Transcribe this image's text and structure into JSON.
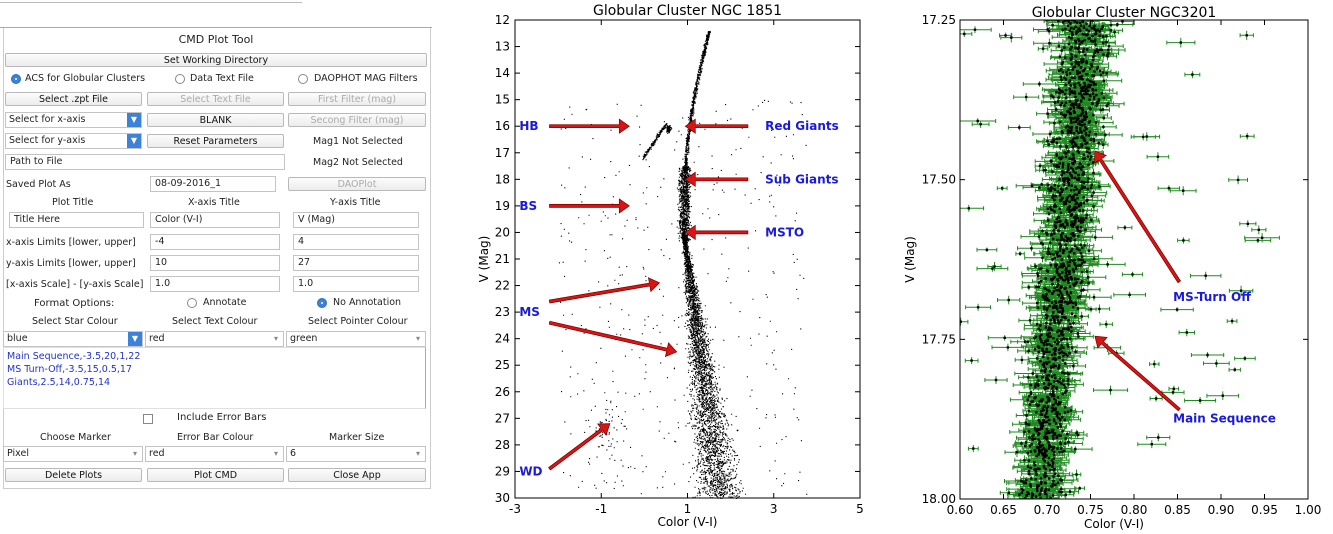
{
  "panel": {
    "title": "CMD Plot Tool",
    "set_working_directory": "Set Working Directory",
    "modes": [
      {
        "label": "ACS for Globular Clusters",
        "selected": true
      },
      {
        "label": "Data Text File",
        "selected": false
      },
      {
        "label": "DAOPHOT MAG Filters",
        "selected": false
      }
    ],
    "select_zpt": "Select .zpt File",
    "select_text_file": "Select Text File",
    "first_filter": "First Filter (mag)",
    "x_axis_select": "Select for x-axis",
    "blank_button": "BLANK",
    "second_filter": "Secong Filter (mag)",
    "y_axis_select": "Select for y-axis",
    "reset_parameters": "Reset Parameters",
    "mag1_status": "Mag1 Not Selected",
    "path_placeholder": "Path to File",
    "mag2_status": "Mag2 Not Selected",
    "saved_plot_label": "Saved Plot As",
    "saved_plot_value": "08-09-2016_1",
    "daoplot": "DAOPlot",
    "plot_title_label": "Plot Title",
    "xaxis_title_label": "X-axis Title",
    "yaxis_title_label": "Y-axis Title",
    "plot_title_value": "Title Here",
    "xaxis_title_value": "Color (V-I)",
    "yaxis_title_value": "V (Mag)",
    "xlimits_label": "x-axis Limits [lower, upper]",
    "xlim_lower": "-4",
    "xlim_upper": "4",
    "ylimits_label": "y-axis Limits [lower, upper]",
    "ylim_lower": "10",
    "ylim_upper": "27",
    "scale_label": "[x-axis Scale] - [y-axis Scale]",
    "x_scale": "1.0",
    "y_scale": "1.0",
    "format_label": "Format Options:",
    "annotate": "Annotate",
    "no_annotation": "No Annotation",
    "star_colour_label": "Select Star Colour",
    "text_colour_label": "Select Text Colour",
    "pointer_colour_label": "Select Pointer Colour",
    "star_colour": "blue",
    "text_colour": "red",
    "pointer_colour": "green",
    "annotations": [
      "Main Sequence,-3.5,20,1,22",
      "MS Turn-Off,-3.5,15,0.5,17",
      "Giants,2.5,14,0.75,14"
    ],
    "include_error_bars": "Include Error Bars",
    "choose_marker_label": "Choose Marker",
    "error_bar_colour_label": "Error Bar Colour",
    "marker_size_label": "Marker Size",
    "marker": "Pixel",
    "error_bar_colour": "red",
    "marker_size": "6",
    "delete_plots": "Delete Plots",
    "plot_cmd": "Plot CMD",
    "close_app": "Close App",
    "accent_color": "#3b82d8"
  },
  "chart_data": [
    {
      "type": "scatter",
      "title": "Globular Cluster NGC 1851",
      "xlabel": "Color (V-I)",
      "ylabel": "V (Mag)",
      "xlim": [
        -3,
        5
      ],
      "ylim": [
        30,
        12
      ],
      "xticks": [
        -3,
        -1,
        1,
        3,
        5
      ],
      "yticks": [
        12,
        13,
        14,
        15,
        16,
        17,
        18,
        19,
        20,
        21,
        22,
        23,
        24,
        25,
        26,
        27,
        28,
        29,
        30
      ],
      "point_color": "#000000",
      "annotations": [
        {
          "text": "HB",
          "x": -2.9,
          "y": 16
        },
        {
          "text": "Red Giants",
          "x": 2.8,
          "y": 16
        },
        {
          "text": "Sub Giants",
          "x": 2.8,
          "y": 18
        },
        {
          "text": "BS",
          "x": -2.9,
          "y": 19
        },
        {
          "text": "MSTO",
          "x": 2.8,
          "y": 20
        },
        {
          "text": "MS",
          "x": -2.9,
          "y": 23
        },
        {
          "text": "WD",
          "x": -2.9,
          "y": 29
        }
      ],
      "annotation_color": "#1a1adc",
      "arrow_color": "#d81515"
    },
    {
      "type": "scatter",
      "title": "Globular Cluster NGC3201",
      "xlabel": "Color (V-I)",
      "ylabel": "V (Mag)",
      "xlim": [
        0.6,
        1.0
      ],
      "ylim": [
        18.0,
        17.25
      ],
      "xticks": [
        0.6,
        0.65,
        0.7,
        0.75,
        0.8,
        0.85,
        0.9,
        0.95,
        1.0
      ],
      "xtick_labels": [
        "0.60",
        "0.65",
        "0.70",
        "0.75",
        "0.80",
        "0.85",
        "0.90",
        "0.95",
        "1.00"
      ],
      "yticks": [
        17.25,
        17.5,
        17.75,
        18.0
      ],
      "ytick_labels": [
        "17.25",
        "17.50",
        "17.75",
        "18.00"
      ],
      "error_bar_color": "#1f8a1f",
      "point_color": "#000000",
      "annotations": [
        {
          "text": "MS-Turn Off",
          "x": 0.845,
          "y": 17.69
        },
        {
          "text": "Main Sequence",
          "x": 0.845,
          "y": 17.88
        }
      ],
      "annotation_color": "#1a1adc",
      "arrow_color": "#d81515"
    }
  ]
}
